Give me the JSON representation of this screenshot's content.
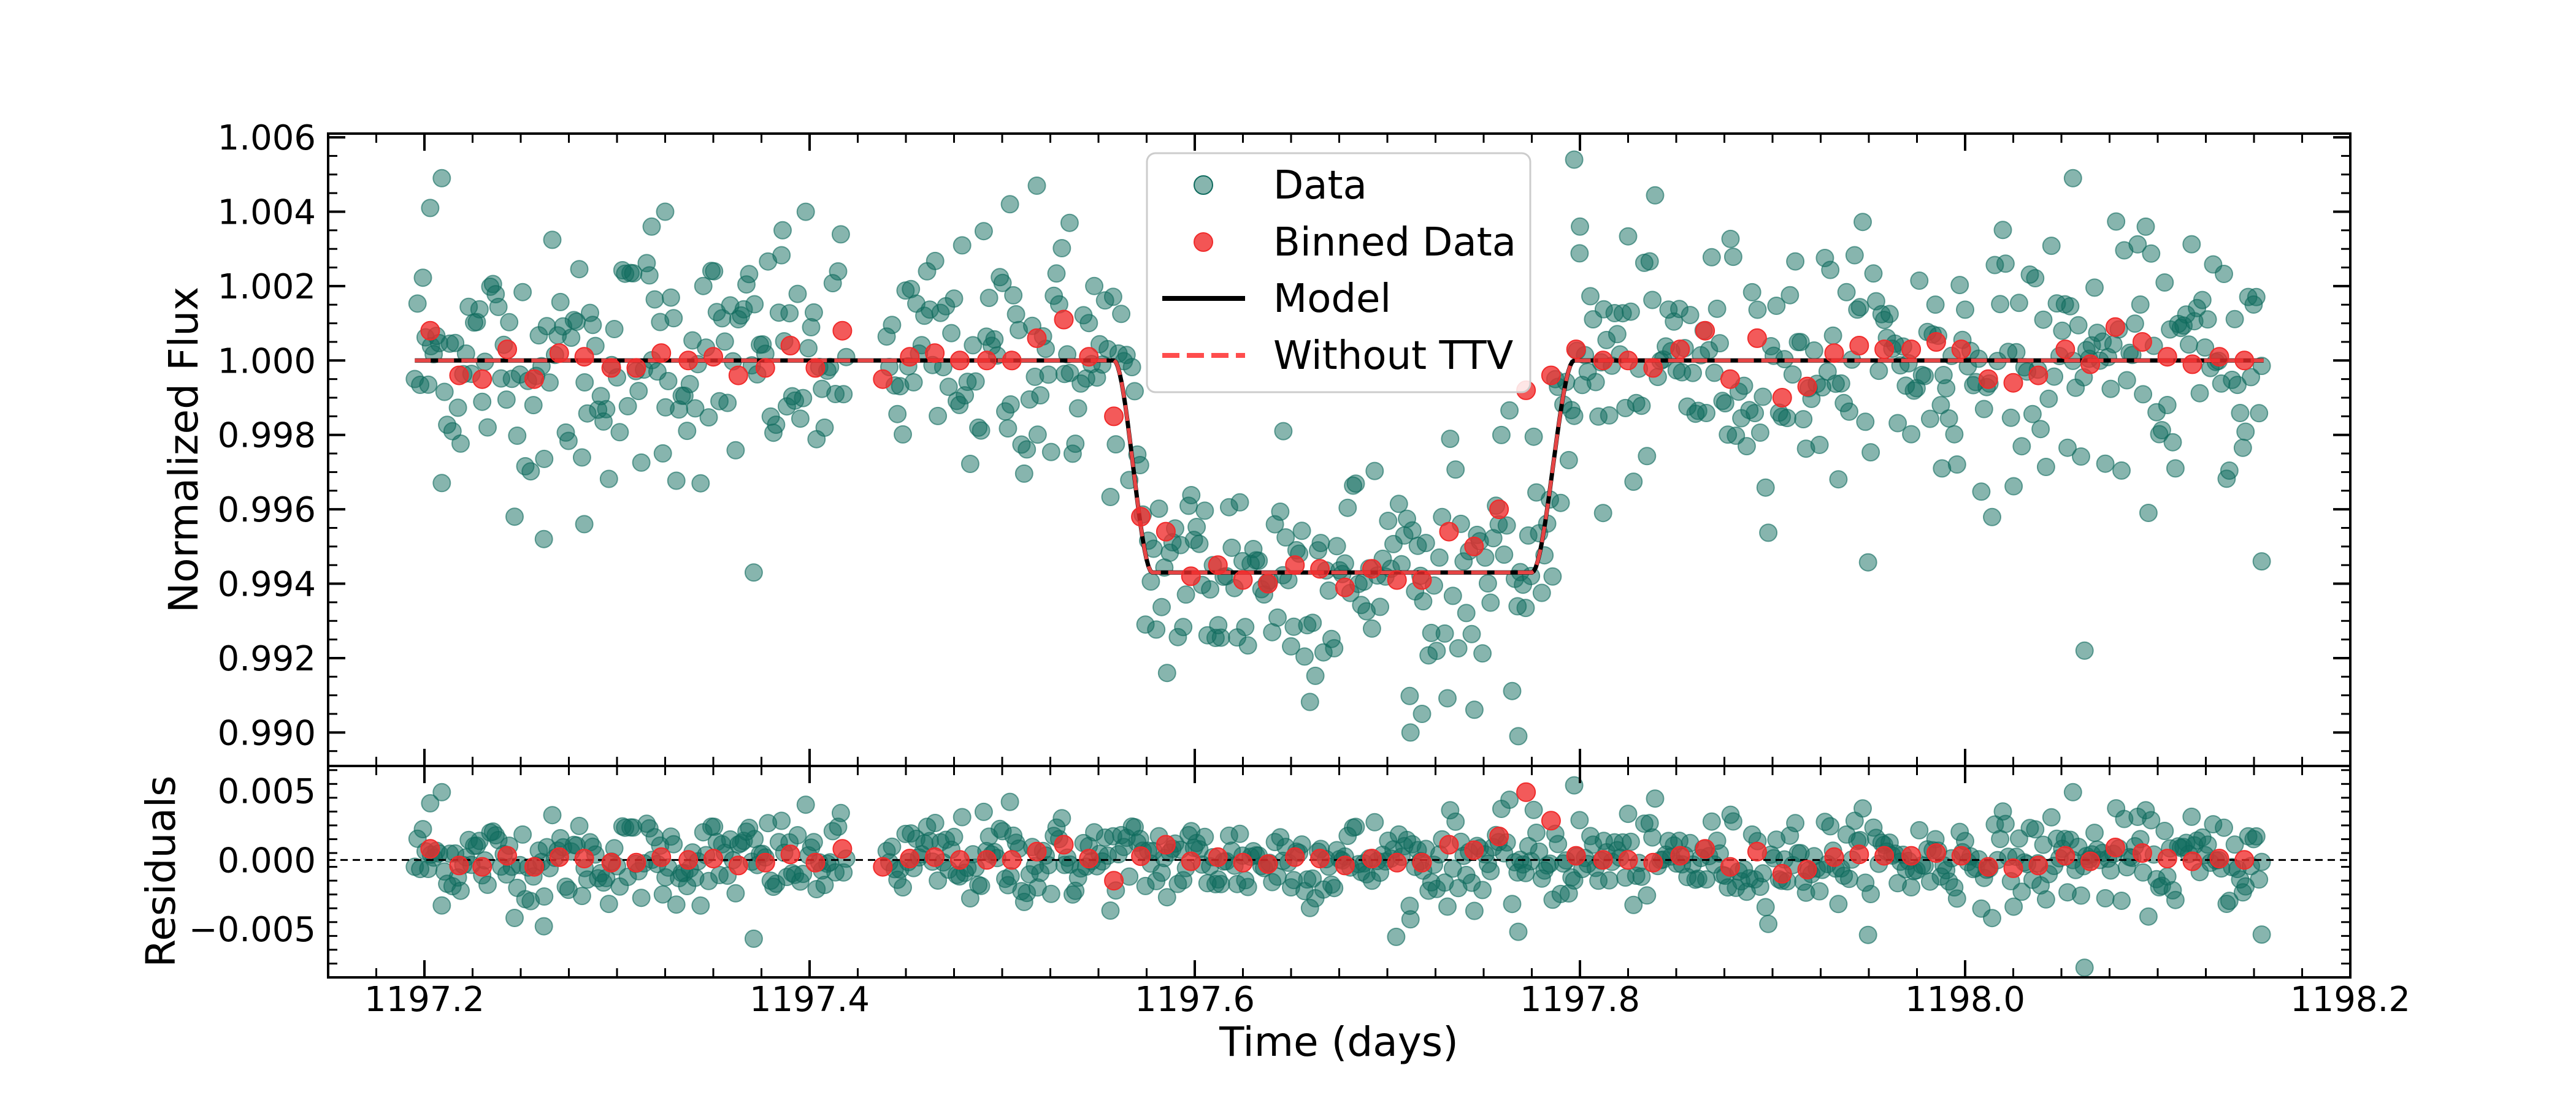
{
  "colors": {
    "data": "#0f6b5e",
    "binned": "#f02b2b",
    "model": "#000000",
    "without_ttv": "#ff4d4d",
    "axes": "#000000"
  },
  "chart_data": [
    {
      "panel": "light-curve",
      "type": "scatter",
      "xlabel": "Time (days)",
      "ylabel": "Normalized Flux",
      "xlim": [
        1197.15,
        1198.2
      ],
      "ylim": [
        0.9891,
        1.0061
      ],
      "x_ticks": [
        1197.2,
        1197.4,
        1197.6,
        1197.8,
        1198.0,
        1198.2
      ],
      "x_tick_labels": [
        "1197.2",
        "1197.4",
        "1197.6",
        "1197.8",
        "1198.0",
        "1198.2"
      ],
      "y_ticks": [
        0.99,
        0.992,
        0.994,
        0.996,
        0.998,
        1.0,
        1.002,
        1.004,
        1.006
      ],
      "y_tick_labels": [
        "0.990",
        "0.992",
        "0.994",
        "0.996",
        "0.998",
        "1.000",
        "1.002",
        "1.004",
        "1.006"
      ],
      "grid": false,
      "legend": {
        "placement": "top-center",
        "entries": [
          "Data",
          "Binned Data",
          "Model",
          "Without TTV"
        ]
      },
      "model": {
        "baseline": 1.0,
        "depth": 0.0057,
        "ingress_start": 1197.558,
        "ingress_end": 1197.578,
        "egress_start": 1197.775,
        "egress_end": 1197.797,
        "t_start": 1197.195,
        "t_end": 1198.155
      },
      "data_coverage": {
        "segments": [
          [
            1197.195,
            1197.42
          ],
          [
            1197.44,
            1198.155
          ]
        ],
        "cadence_days": 0.0014,
        "scatter": 0.0016
      },
      "data_outliers": [
        {
          "x": 1197.203,
          "y": 1.0041
        },
        {
          "x": 1197.209,
          "y": 1.0049
        },
        {
          "x": 1197.262,
          "y": 0.9952
        },
        {
          "x": 1197.283,
          "y": 0.9956
        },
        {
          "x": 1197.318,
          "y": 1.0036
        },
        {
          "x": 1197.325,
          "y": 1.004
        },
        {
          "x": 1197.371,
          "y": 0.9943
        },
        {
          "x": 1197.386,
          "y": 1.0035
        },
        {
          "x": 1197.504,
          "y": 1.0042
        },
        {
          "x": 1197.518,
          "y": 1.0047
        },
        {
          "x": 1197.535,
          "y": 1.0037
        },
        {
          "x": 1197.646,
          "y": 0.9981
        },
        {
          "x": 1197.712,
          "y": 0.99
        },
        {
          "x": 1197.718,
          "y": 0.9905
        },
        {
          "x": 1197.768,
          "y": 0.9899
        },
        {
          "x": 1197.797,
          "y": 1.0054
        },
        {
          "x": 1197.8,
          "y": 1.0036
        },
        {
          "x": 1197.812,
          "y": 0.9959
        },
        {
          "x": 1197.988,
          "y": 0.9971
        },
        {
          "x": 1198.056,
          "y": 1.0049
        },
        {
          "x": 1198.062,
          "y": 0.9922
        },
        {
          "x": 1198.154,
          "y": 0.9946
        }
      ],
      "binned": {
        "x": [
          1197.203,
          1197.218,
          1197.23,
          1197.243,
          1197.257,
          1197.27,
          1197.283,
          1197.297,
          1197.31,
          1197.323,
          1197.337,
          1197.35,
          1197.363,
          1197.377,
          1197.39,
          1197.403,
          1197.417,
          1197.438,
          1197.452,
          1197.465,
          1197.478,
          1197.492,
          1197.505,
          1197.518,
          1197.532,
          1197.545,
          1197.558,
          1197.572,
          1197.585,
          1197.598,
          1197.612,
          1197.625,
          1197.638,
          1197.652,
          1197.665,
          1197.678,
          1197.692,
          1197.705,
          1197.718,
          1197.732,
          1197.745,
          1197.758,
          1197.772,
          1197.785,
          1197.798,
          1197.812,
          1197.825,
          1197.838,
          1197.852,
          1197.865,
          1197.878,
          1197.892,
          1197.905,
          1197.918,
          1197.932,
          1197.945,
          1197.958,
          1197.972,
          1197.985,
          1197.998,
          1198.012,
          1198.025,
          1198.038,
          1198.052,
          1198.065,
          1198.078,
          1198.092,
          1198.105,
          1198.118,
          1198.132,
          1198.145
        ],
        "y": [
          1.0008,
          0.9996,
          0.9995,
          1.0003,
          0.9995,
          1.0002,
          1.0001,
          0.9998,
          0.9998,
          1.0002,
          1.0,
          1.0001,
          0.9996,
          0.9998,
          1.0004,
          0.9998,
          1.0008,
          0.9995,
          1.0001,
          1.0002,
          1.0,
          1.0,
          1.0,
          1.0006,
          1.0011,
          1.0001,
          0.9985,
          0.9958,
          0.9954,
          0.9942,
          0.9945,
          0.9941,
          0.994,
          0.9945,
          0.9944,
          0.9939,
          0.9944,
          0.9941,
          0.9941,
          0.9954,
          0.995,
          0.996,
          0.9992,
          0.9996,
          1.0003,
          1.0,
          1.0,
          0.9998,
          1.0003,
          1.0008,
          0.9995,
          1.0006,
          0.999,
          0.9993,
          1.0002,
          1.0004,
          1.0003,
          1.0003,
          1.0005,
          1.0003,
          0.9995,
          0.9994,
          0.9996,
          1.0003,
          0.9999,
          1.0009,
          1.0005,
          1.0001,
          0.9999,
          1.0001,
          1.0
        ]
      }
    },
    {
      "panel": "residuals",
      "type": "scatter",
      "xlabel": "Time (days)",
      "ylabel": "Residuals",
      "xlim": [
        1197.15,
        1198.2
      ],
      "ylim": [
        -0.0085,
        0.0068
      ],
      "y_ticks": [
        -0.005,
        0.0,
        0.005
      ],
      "y_tick_labels": [
        "−0.005",
        "0.000",
        "0.005"
      ],
      "zero_line": {
        "y": 0.0,
        "style": "dashed"
      },
      "grid": false,
      "residual_outliers": [
        {
          "x": 1197.203,
          "y": 0.0041
        },
        {
          "x": 1197.209,
          "y": 0.0049
        },
        {
          "x": 1197.262,
          "y": -0.0048
        },
        {
          "x": 1197.371,
          "y": -0.0057
        },
        {
          "x": 1197.504,
          "y": 0.0042
        },
        {
          "x": 1197.712,
          "y": -0.0043
        },
        {
          "x": 1197.768,
          "y": -0.0052
        },
        {
          "x": 1197.797,
          "y": 0.0054
        },
        {
          "x": 1198.056,
          "y": 0.0049
        },
        {
          "x": 1198.062,
          "y": -0.0078
        },
        {
          "x": 1198.154,
          "y": -0.0054
        }
      ]
    }
  ]
}
